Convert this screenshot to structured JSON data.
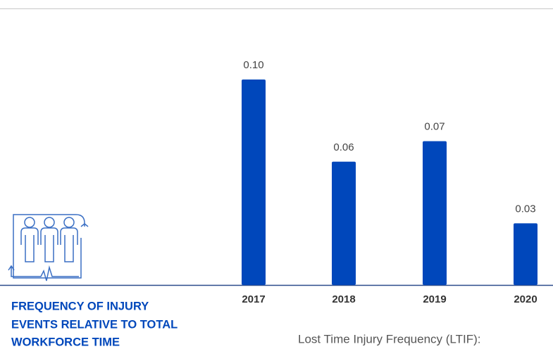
{
  "chart_data": {
    "type": "bar",
    "title_lines": [
      "FREQUENCY OF INJURY",
      "EVENTS RELATIVE TO TOTAL",
      "WORKFORCE TIME"
    ],
    "subtitle": "Lost Time Injury Frequency (LTIF):",
    "categories": [
      "2017",
      "2018",
      "2019",
      "2020"
    ],
    "values": [
      0.1,
      0.06,
      0.07,
      0.03
    ],
    "value_labels": [
      "0.10",
      "0.06",
      "0.07",
      "0.03"
    ],
    "color": "#0047bb"
  }
}
